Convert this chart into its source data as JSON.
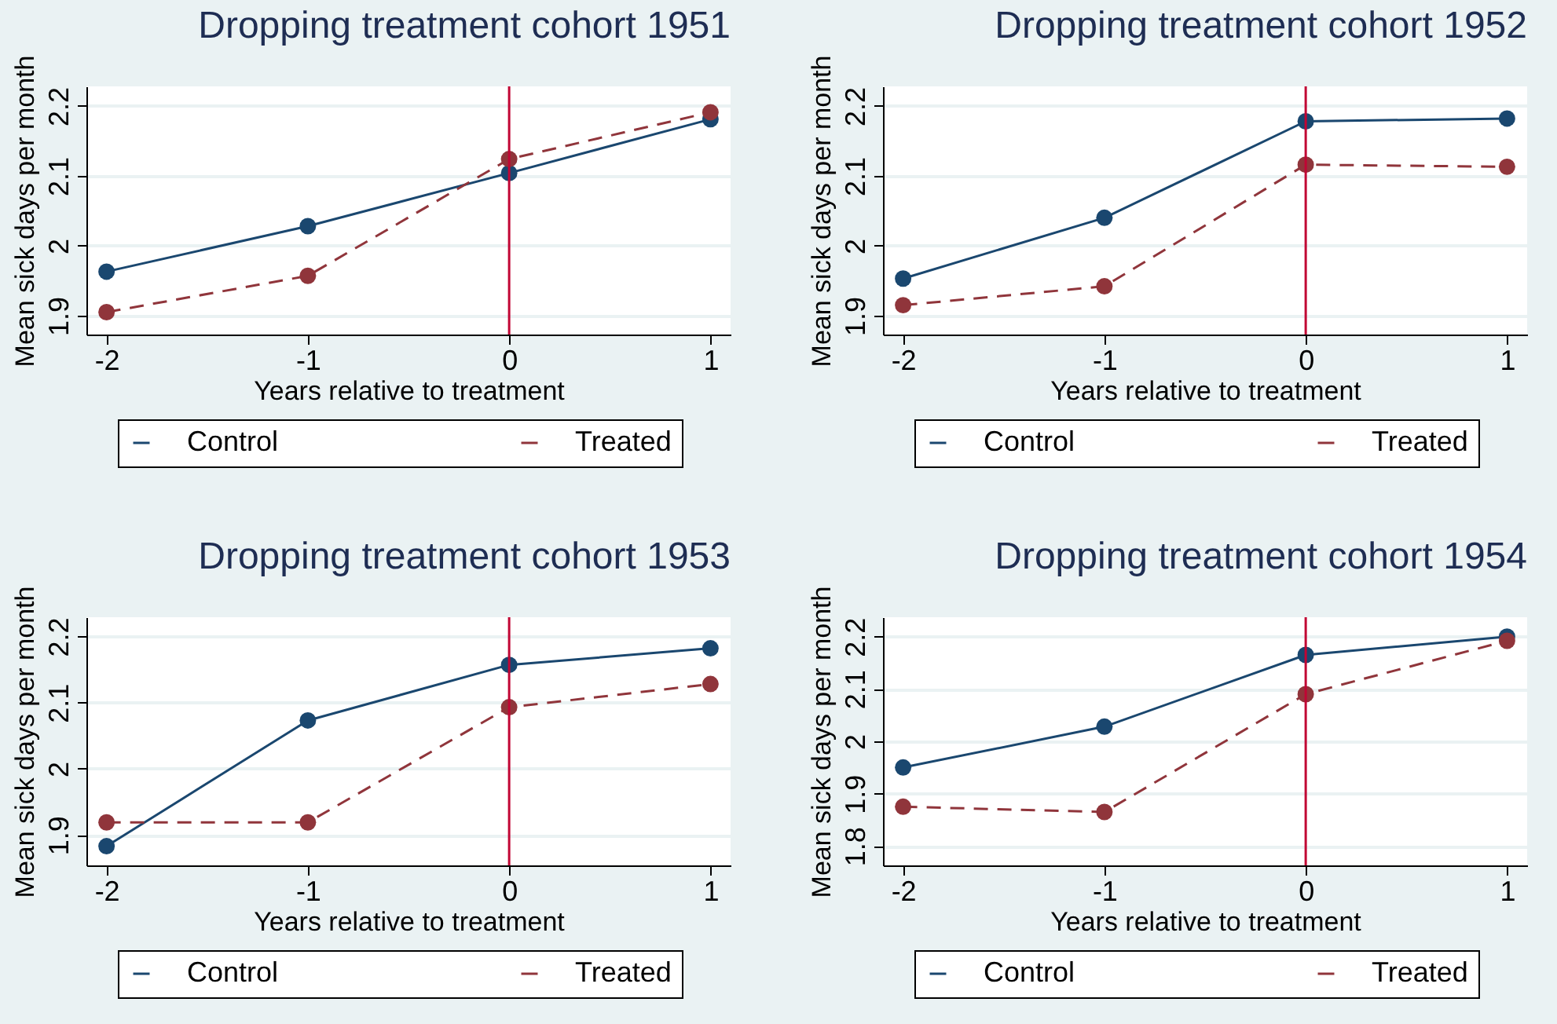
{
  "chart_data": [
    {
      "type": "line",
      "title": "Dropping treatment cohort 1951",
      "xlabel": "Years relative to treatment",
      "ylabel": "Mean sick days per month",
      "x": [
        -2,
        -1,
        0,
        1
      ],
      "xlim": [
        -2.1,
        1.1
      ],
      "xticks": [
        -2,
        -1,
        0,
        1
      ],
      "ylim": [
        1.873,
        2.228
      ],
      "yticks": [
        1.9,
        2,
        2.1,
        2.2
      ],
      "grid": "y",
      "legend": "bottom",
      "marker": "circle",
      "ref_lines": [
        {
          "axis": "x",
          "value": 0,
          "color": "#c10534"
        }
      ],
      "series": [
        {
          "name": "Control",
          "color": "#1a476f",
          "line_style": "solid",
          "values": [
            1.963,
            2.028,
            2.104,
            2.181
          ]
        },
        {
          "name": "Treated",
          "color": "#90353b",
          "line_style": "dashed",
          "values": [
            1.905,
            1.957,
            2.124,
            2.191
          ]
        }
      ]
    },
    {
      "type": "line",
      "title": "Dropping treatment cohort 1952",
      "xlabel": "Years relative to treatment",
      "ylabel": "Mean sick days per month",
      "x": [
        -2,
        -1,
        0,
        1
      ],
      "xlim": [
        -2.1,
        1.1
      ],
      "xticks": [
        -2,
        -1,
        0,
        1
      ],
      "ylim": [
        1.873,
        2.228
      ],
      "yticks": [
        1.9,
        2,
        2.1,
        2.2
      ],
      "grid": "y",
      "legend": "bottom",
      "marker": "circle",
      "ref_lines": [
        {
          "axis": "x",
          "value": 0,
          "color": "#c10534"
        }
      ],
      "series": [
        {
          "name": "Control",
          "color": "#1a476f",
          "line_style": "solid",
          "values": [
            1.953,
            2.04,
            2.178,
            2.182
          ]
        },
        {
          "name": "Treated",
          "color": "#90353b",
          "line_style": "dashed",
          "values": [
            1.915,
            1.942,
            2.116,
            2.113
          ]
        }
      ]
    },
    {
      "type": "line",
      "title": "Dropping treatment cohort 1953",
      "xlabel": "Years relative to treatment",
      "ylabel": "Mean sick days per month",
      "x": [
        -2,
        -1,
        0,
        1
      ],
      "xlim": [
        -2.1,
        1.1
      ],
      "xticks": [
        -2,
        -1,
        0,
        1
      ],
      "ylim": [
        1.854,
        2.229
      ],
      "yticks": [
        1.9,
        2,
        2.1,
        2.2
      ],
      "grid": "y",
      "legend": "bottom",
      "marker": "circle",
      "ref_lines": [
        {
          "axis": "x",
          "value": 0,
          "color": "#c10534"
        }
      ],
      "series": [
        {
          "name": "Control",
          "color": "#1a476f",
          "line_style": "solid",
          "values": [
            1.883,
            2.073,
            2.157,
            2.182
          ]
        },
        {
          "name": "Treated",
          "color": "#90353b",
          "line_style": "dashed",
          "values": [
            1.919,
            1.919,
            2.093,
            2.128
          ]
        }
      ]
    },
    {
      "type": "line",
      "title": "Dropping treatment cohort 1954",
      "xlabel": "Years relative to treatment",
      "ylabel": "Mean sick days per month",
      "x": [
        -2,
        -1,
        0,
        1
      ],
      "xlim": [
        -2.1,
        1.1
      ],
      "xticks": [
        -2,
        -1,
        0,
        1
      ],
      "ylim": [
        1.763,
        2.237
      ],
      "yticks": [
        1.8,
        1.9,
        2,
        2.1,
        2.2
      ],
      "grid": "y",
      "legend": "bottom",
      "marker": "circle",
      "ref_lines": [
        {
          "axis": "x",
          "value": 0,
          "color": "#c10534"
        }
      ],
      "series": [
        {
          "name": "Control",
          "color": "#1a476f",
          "line_style": "solid",
          "values": [
            1.95,
            2.028,
            2.165,
            2.2
          ]
        },
        {
          "name": "Treated",
          "color": "#90353b",
          "line_style": "dashed",
          "values": [
            1.875,
            1.865,
            2.09,
            2.192
          ]
        }
      ]
    }
  ]
}
